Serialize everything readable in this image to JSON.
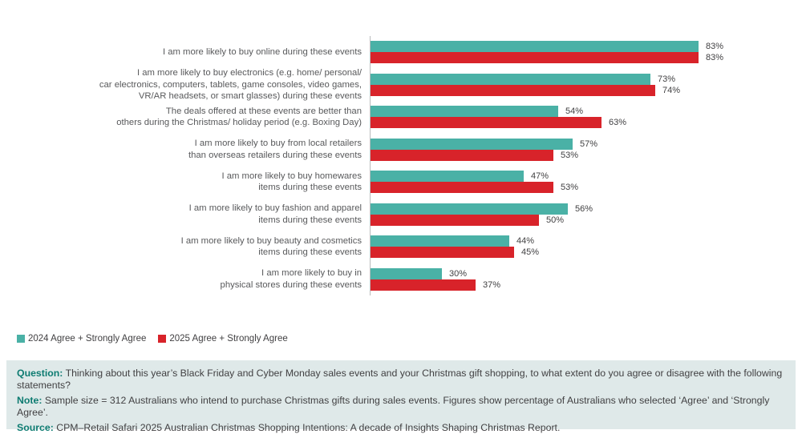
{
  "chart_data": {
    "type": "bar",
    "orientation": "horizontal",
    "value_suffix": "%",
    "axis_color": "#b9bbbd",
    "categories_lines": [
      [
        "I am more likely to buy online during these events"
      ],
      [
        "I am more likely to buy electronics (e.g. home/ personal/",
        "car electronics, computers, tablets, game consoles, video games,",
        "VR/AR headsets, or smart glasses) during these events"
      ],
      [
        "The deals offered at these events are better than",
        "others during the Christmas/ holiday period (e.g. Boxing Day)"
      ],
      [
        "I am more likely to buy from local retailers",
        "than overseas retailers during these events"
      ],
      [
        "I am more likely to buy homewares",
        "items during these events"
      ],
      [
        "I am more likely to buy fashion and apparel",
        "items during these events"
      ],
      [
        "I am more likely to buy beauty and cosmetics",
        "items during these events"
      ],
      [
        "I am more likely to buy in",
        "physical stores during these events"
      ]
    ],
    "series": [
      {
        "name": "2024 Agree + Strongly Agree",
        "color": "#4ab1a6",
        "values": [
          83,
          73,
          54,
          57,
          47,
          56,
          44,
          30
        ]
      },
      {
        "name": "2025 Agree + Strongly Agree",
        "color": "#d8232a",
        "values": [
          83,
          74,
          63,
          53,
          53,
          50,
          45,
          37
        ]
      }
    ],
    "data_labels": [
      [
        "83%",
        "73%",
        "54%",
        "57%",
        "47%",
        "56%",
        "44%",
        "30%"
      ],
      [
        "83%",
        "74%",
        "63%",
        "53%",
        "53%",
        "50%",
        "45%",
        "37%"
      ]
    ],
    "legend_position": "bottom-left",
    "grid": false
  },
  "legend": {
    "items": [
      {
        "label": "2024 Agree + Strongly Agree",
        "color": "#4ab1a6"
      },
      {
        "label": "2025 Agree + Strongly Agree",
        "color": "#d8232a"
      }
    ]
  },
  "footer": {
    "question_label": "Question:",
    "question_text": " Thinking about this year’s Black Friday and Cyber Monday sales events and your Christmas gift shopping, to what extent do you agree or disagree with the following statements?",
    "note_label": "Note:",
    "note_text": " Sample size = 312 Australians who intend to purchase Christmas gifts during sales events. Figures show percentage of Australians who selected ‘Agree’ and ‘Strongly Agree’.",
    "source_label": "Source:",
    "source_text": " CPM–Retail Safari 2025 Australian Christmas Shopping Intentions: A decade of Insights Shaping Christmas Report.",
    "label_color": "#0d7b71",
    "box_background": "#dfe9e9"
  }
}
